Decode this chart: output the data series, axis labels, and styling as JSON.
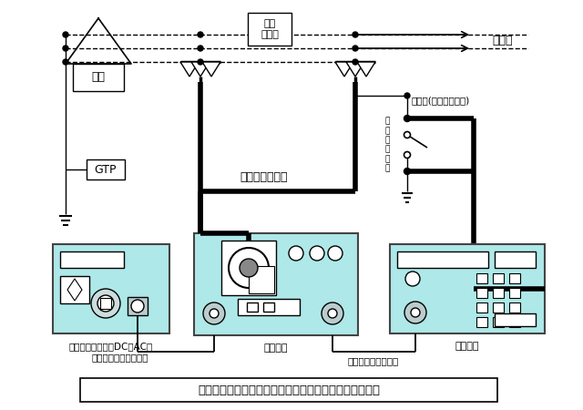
{
  "white": "#ffffff",
  "black": "#000000",
  "light_cyan": "#aee8e8",
  "title": "交流重畳法による高圧活線ケーブル劣化診断測定回路図",
  "label_dengen": "電源",
  "label_gtp": "GTP",
  "label_koatsu": "高圧\n配電線",
  "label_fuka": "負荷へ",
  "label_hisokutei": "被測定ケーブル",
  "label_setsuchi": "接地線(シースアース)",
  "label_setsuchisokutei": "接\n地\n側\n定\n金\n物",
  "label_dengen_adapter": "電源アダプター（DC＆AC）",
  "label_adapter_cable": "アダプター用ケーブル",
  "label_chojo": "重畳装置",
  "label_shingo": "信号接続用ケーブル",
  "label_sokutei": "測定装置"
}
